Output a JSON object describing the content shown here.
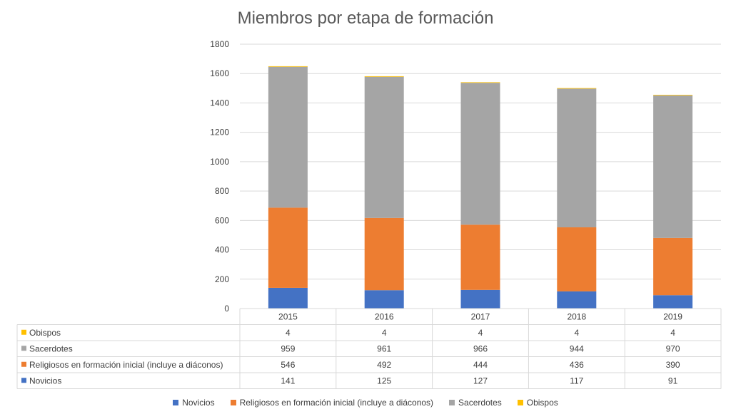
{
  "chart_data": {
    "type": "bar",
    "stacked": true,
    "title": "Miembros por etapa de formación",
    "categories": [
      "2015",
      "2016",
      "2017",
      "2018",
      "2019"
    ],
    "ylim": [
      0,
      1800
    ],
    "yticks": [
      0,
      200,
      400,
      600,
      800,
      1000,
      1200,
      1400,
      1600,
      1800
    ],
    "grid": true,
    "legend_position": "bottom",
    "data_table": true,
    "series": [
      {
        "name": "Novicios",
        "color": "#4472C4",
        "values": [
          141,
          125,
          127,
          117,
          91
        ]
      },
      {
        "name": "Religiosos en formación inicial (incluye a diáconos)",
        "color": "#ED7D31",
        "values": [
          546,
          492,
          444,
          436,
          390
        ]
      },
      {
        "name": "Sacerdotes",
        "color": "#A5A5A5",
        "values": [
          959,
          961,
          966,
          944,
          970
        ]
      },
      {
        "name": "Obispos",
        "color": "#FFC000",
        "values": [
          4,
          4,
          4,
          4,
          4
        ]
      }
    ]
  }
}
